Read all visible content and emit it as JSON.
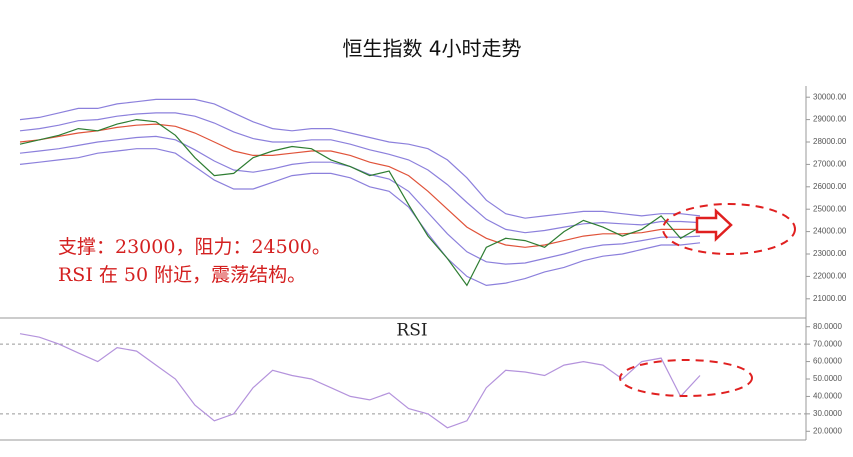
{
  "chart_data": [
    {
      "type": "line",
      "title": "恒生指数 4小时走势",
      "annotations": [
        "支撑：23000，阻力：24500。",
        "RSI 在 50 附近，震荡结构。"
      ],
      "categories": [
        null,
        null,
        null,
        null,
        null,
        null,
        null,
        null,
        null,
        null,
        null,
        null,
        null,
        null,
        null,
        null,
        null,
        null,
        null,
        null,
        null,
        null,
        null,
        null,
        null,
        null,
        null,
        null,
        null,
        null,
        null,
        null,
        null,
        null,
        null,
        null
      ],
      "ylim": [
        20500,
        30500
      ],
      "yticks": [
        {
          "value": 21000,
          "label": "21000.00"
        },
        {
          "value": 22000,
          "label": "22000.00"
        },
        {
          "value": 23000,
          "label": "23000.00"
        },
        {
          "value": 24000,
          "label": "24000.00"
        },
        {
          "value": 25000,
          "label": "25000.00"
        },
        {
          "value": 26000,
          "label": "26000.00"
        },
        {
          "value": 27000,
          "label": "27000.00"
        },
        {
          "value": 28000,
          "label": "28000.00"
        },
        {
          "value": 29000,
          "label": "29000.00"
        },
        {
          "value": 30000,
          "label": "30000.00"
        }
      ],
      "series": [
        {
          "color": "#8c80dc",
          "values": [
            29000,
            29100,
            29300,
            29500,
            29500,
            29700,
            29800,
            29900,
            29900,
            29900,
            29700,
            29300,
            28900,
            28600,
            28500,
            28600,
            28600,
            28400,
            28200,
            28000,
            27900,
            27700,
            27200,
            26400,
            25400,
            24800,
            24600,
            24700,
            24800,
            24900,
            24900,
            24800,
            24700,
            24800,
            24800,
            24700
          ]
        },
        {
          "color": "#8c80dc",
          "values": [
            28500,
            28600,
            28750,
            28950,
            29000,
            29150,
            29250,
            29300,
            29300,
            29150,
            28850,
            28450,
            28150,
            28000,
            28000,
            28100,
            28100,
            27900,
            27650,
            27450,
            27200,
            26750,
            26100,
            25300,
            24550,
            24100,
            23950,
            24050,
            24200,
            24350,
            24400,
            24350,
            24300,
            24450,
            24450,
            24400
          ]
        },
        {
          "color": "#e0533a",
          "values": [
            28000,
            28100,
            28250,
            28400,
            28500,
            28650,
            28750,
            28800,
            28700,
            28400,
            28000,
            27600,
            27400,
            27400,
            27500,
            27600,
            27600,
            27400,
            27100,
            26900,
            26500,
            25800,
            25000,
            24200,
            23700,
            23400,
            23300,
            23400,
            23600,
            23800,
            23900,
            23900,
            23950,
            24100,
            24100,
            24100
          ]
        },
        {
          "color": "#8c80dc",
          "values": [
            27500,
            27600,
            27700,
            27850,
            28000,
            28100,
            28200,
            28250,
            28100,
            27650,
            27150,
            26750,
            26650,
            26800,
            27000,
            27100,
            27100,
            26900,
            26550,
            26350,
            25800,
            24850,
            23900,
            23100,
            22650,
            22550,
            22600,
            22800,
            23000,
            23250,
            23400,
            23450,
            23600,
            23750,
            23750,
            23800
          ]
        },
        {
          "color": "#8c80dc",
          "values": [
            27000,
            27100,
            27200,
            27300,
            27500,
            27600,
            27700,
            27700,
            27500,
            26900,
            26300,
            25900,
            25900,
            26200,
            26500,
            26600,
            26600,
            26400,
            26000,
            25800,
            25100,
            23900,
            22800,
            22000,
            21600,
            21700,
            21900,
            22200,
            22400,
            22700,
            22900,
            23000,
            23200,
            23400,
            23400,
            23500
          ]
        },
        {
          "color": "#2e7d32",
          "values": [
            27900,
            28100,
            28300,
            28600,
            28500,
            28800,
            29000,
            28900,
            28300,
            27300,
            26500,
            26600,
            27300,
            27600,
            27800,
            27700,
            27200,
            26900,
            26500,
            26700,
            25200,
            23800,
            22800,
            21600,
            23300,
            23700,
            23600,
            23300,
            24000,
            24500,
            24200,
            23800,
            24100,
            24700,
            23700,
            24200
          ]
        }
      ]
    },
    {
      "type": "line",
      "title": "RSI",
      "categories": [
        null,
        null,
        null,
        null,
        null,
        null,
        null,
        null,
        null,
        null,
        null,
        null,
        null,
        null,
        null,
        null,
        null,
        null,
        null,
        null,
        null,
        null,
        null,
        null,
        null,
        null,
        null,
        null,
        null,
        null,
        null,
        null,
        null,
        null,
        null,
        null
      ],
      "ylim": [
        15,
        85
      ],
      "yticks": [
        {
          "value": 20,
          "label": "20.0000"
        },
        {
          "value": 30,
          "label": "30.0000"
        },
        {
          "value": 40,
          "label": "40.0000"
        },
        {
          "value": 50,
          "label": "50.0000"
        },
        {
          "value": 60,
          "label": "60.0000"
        },
        {
          "value": 70,
          "label": "70.0000"
        },
        {
          "value": 80,
          "label": "80.0000"
        }
      ],
      "levels": [
        70,
        30
      ],
      "series": [
        {
          "color": "#b493dc",
          "values": [
            76,
            74,
            70,
            65,
            60,
            68,
            66,
            58,
            50,
            35,
            26,
            30,
            45,
            55,
            52,
            50,
            45,
            40,
            38,
            42,
            33,
            30,
            22,
            26,
            45,
            55,
            54,
            52,
            58,
            60,
            58,
            50,
            60,
            62,
            40,
            52
          ]
        }
      ]
    }
  ]
}
